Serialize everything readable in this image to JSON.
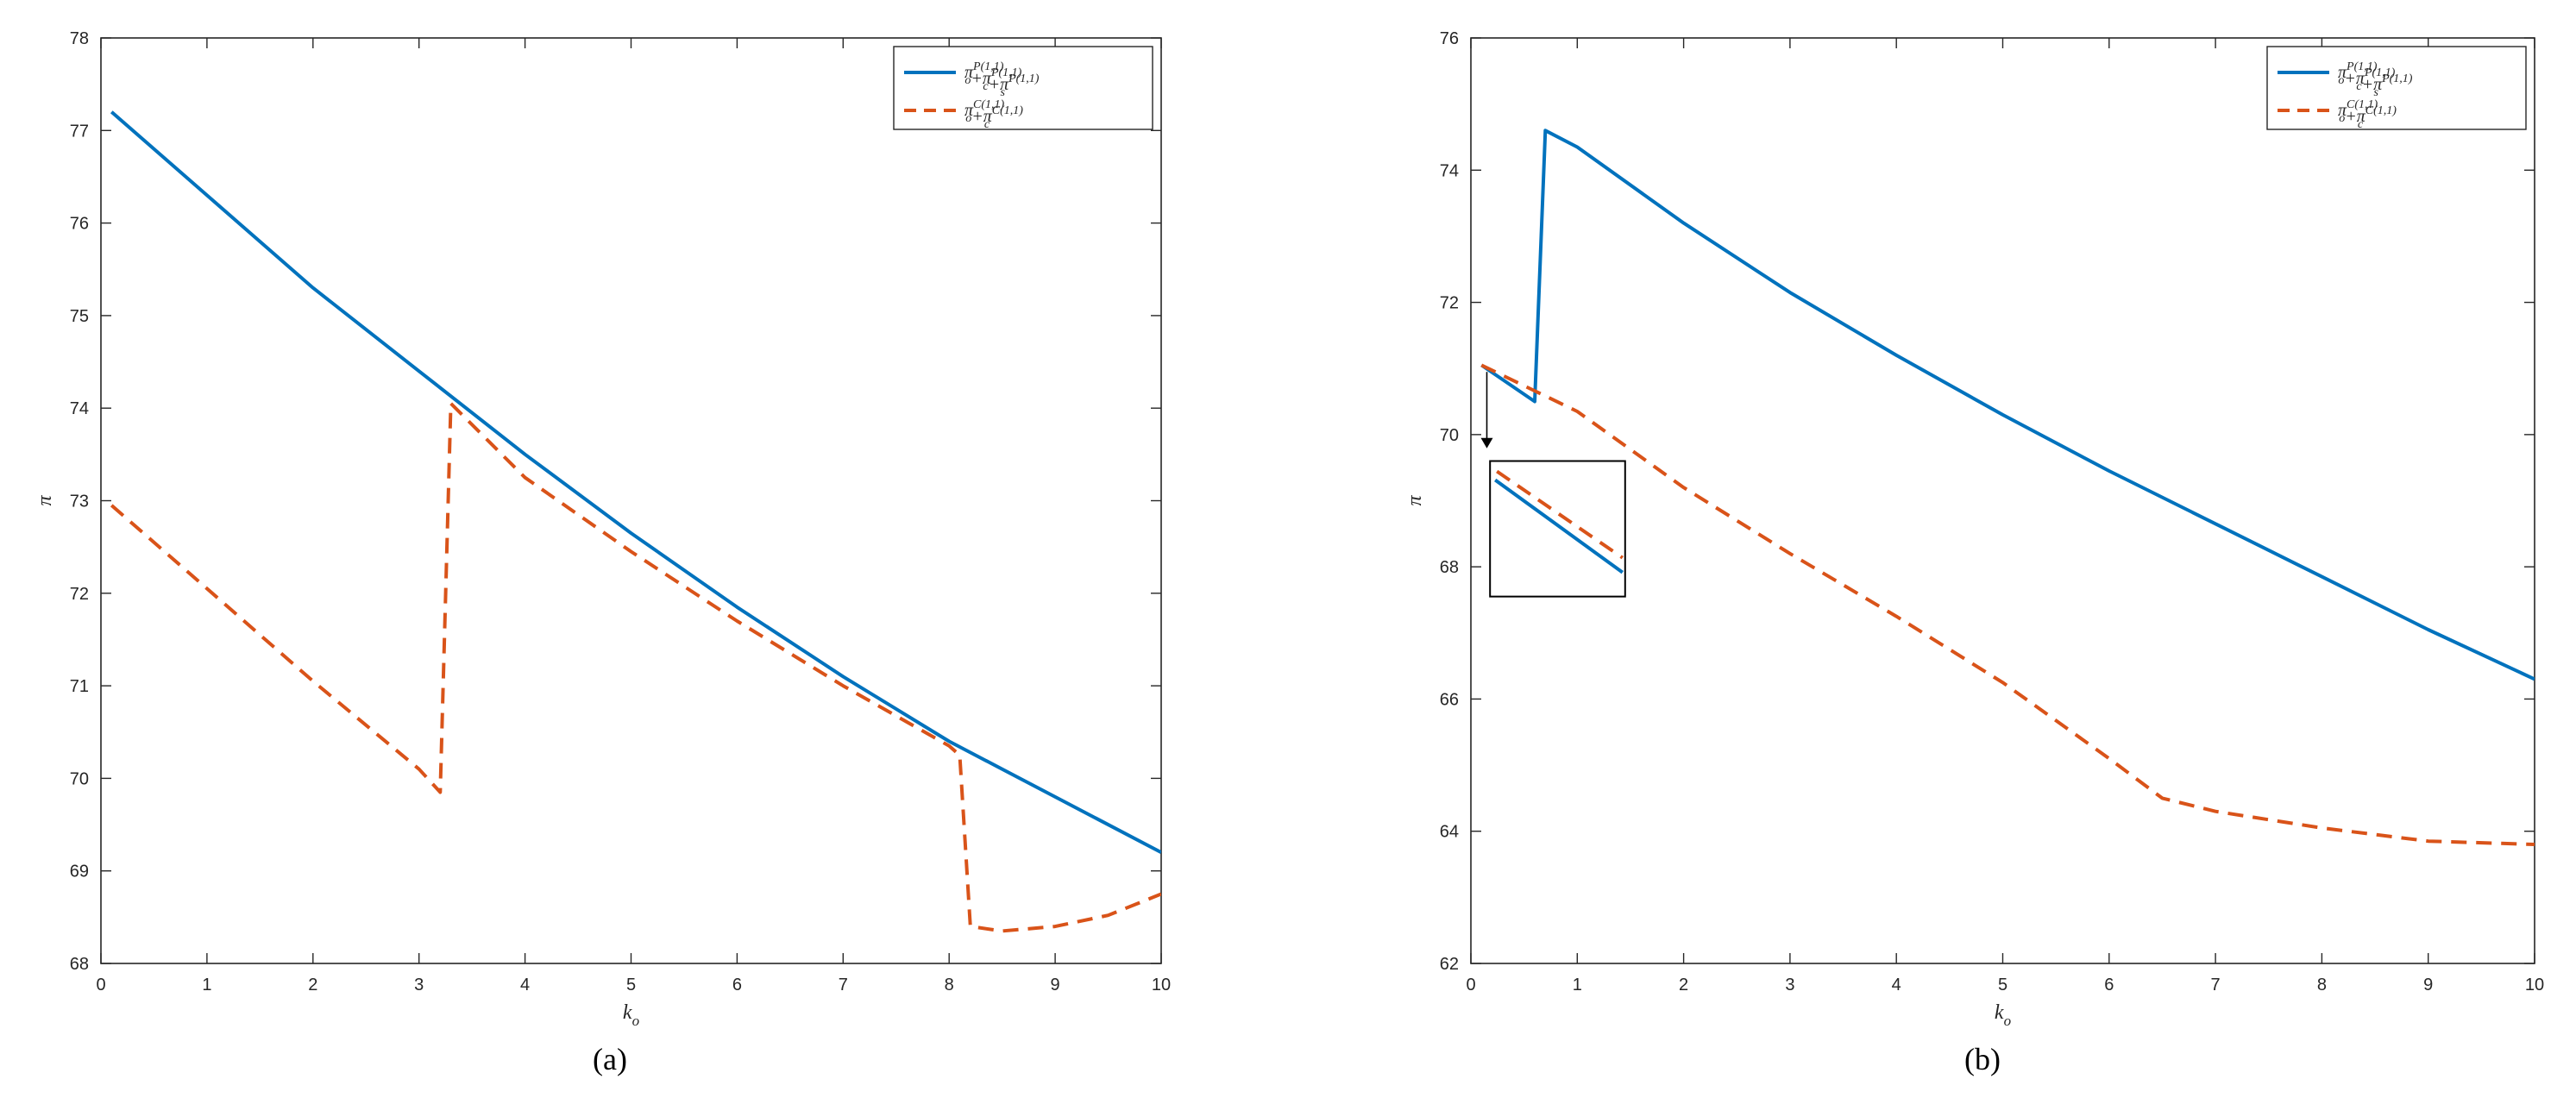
{
  "colors": {
    "series_1": "#0072BD",
    "series_2": "#D95319",
    "axis": "#262626"
  },
  "chart_data": [
    {
      "type": "line",
      "caption": "(a)",
      "xlabel": "k_o",
      "ylabel": "π",
      "xlim": [
        0,
        10
      ],
      "ylim": [
        68,
        78
      ],
      "xticks": [
        0,
        1,
        2,
        3,
        4,
        5,
        6,
        7,
        8,
        9,
        10
      ],
      "yticks": [
        68,
        69,
        70,
        71,
        72,
        73,
        74,
        75,
        76,
        77,
        78
      ],
      "grid": false,
      "legend_position": "top-right",
      "series": [
        {
          "name": "π_o^{P(1,1)}+π_c^{P(1,1)}+π_s^{P(1,1)}",
          "style": "solid",
          "x": [
            0.1,
            1,
            2,
            3,
            4,
            5,
            6,
            7,
            8,
            9,
            10
          ],
          "y": [
            77.2,
            76.3,
            75.3,
            74.4,
            73.5,
            72.65,
            71.85,
            71.1,
            70.4,
            69.8,
            69.2
          ]
        },
        {
          "name": "π_o^{C(1,1)}+π_c^{C(1,1)}",
          "style": "dashed",
          "x": [
            0.1,
            1,
            2,
            3,
            3.2,
            3.3,
            4,
            5,
            6,
            7,
            8,
            8.1,
            8.2,
            8.5,
            9,
            9.5,
            10
          ],
          "y": [
            72.95,
            72.05,
            71.05,
            70.1,
            69.85,
            74.05,
            73.25,
            72.45,
            71.7,
            71.0,
            70.35,
            70.25,
            68.4,
            68.35,
            68.4,
            68.52,
            68.75
          ]
        }
      ]
    },
    {
      "type": "line",
      "caption": "(b)",
      "xlabel": "k_o",
      "ylabel": "π",
      "xlim": [
        0,
        10
      ],
      "ylim": [
        62,
        76
      ],
      "xticks": [
        0,
        1,
        2,
        3,
        4,
        5,
        6,
        7,
        8,
        9,
        10
      ],
      "yticks": [
        62,
        64,
        66,
        68,
        70,
        72,
        74,
        76
      ],
      "grid": false,
      "legend_position": "top-right",
      "inset": true,
      "series": [
        {
          "name": "π_o^{P(1,1)}+π_c^{P(1,1)}+π_s^{P(1,1)}",
          "style": "solid",
          "x": [
            0.1,
            0.6,
            0.7,
            1,
            2,
            3,
            4,
            5,
            6,
            7,
            8,
            9,
            10
          ],
          "y": [
            71.05,
            70.5,
            74.6,
            74.35,
            73.2,
            72.15,
            71.2,
            70.3,
            69.45,
            68.65,
            67.85,
            67.05,
            66.3
          ]
        },
        {
          "name": "π_o^{C(1,1)}+π_c^{C(1,1)}",
          "style": "dashed",
          "x": [
            0.1,
            1,
            2,
            3,
            4,
            5,
            6,
            6.5,
            7,
            8,
            9,
            10
          ],
          "y": [
            71.05,
            70.35,
            69.2,
            68.2,
            67.25,
            66.25,
            65.1,
            64.5,
            64.3,
            64.05,
            63.85,
            63.8
          ]
        }
      ]
    }
  ]
}
